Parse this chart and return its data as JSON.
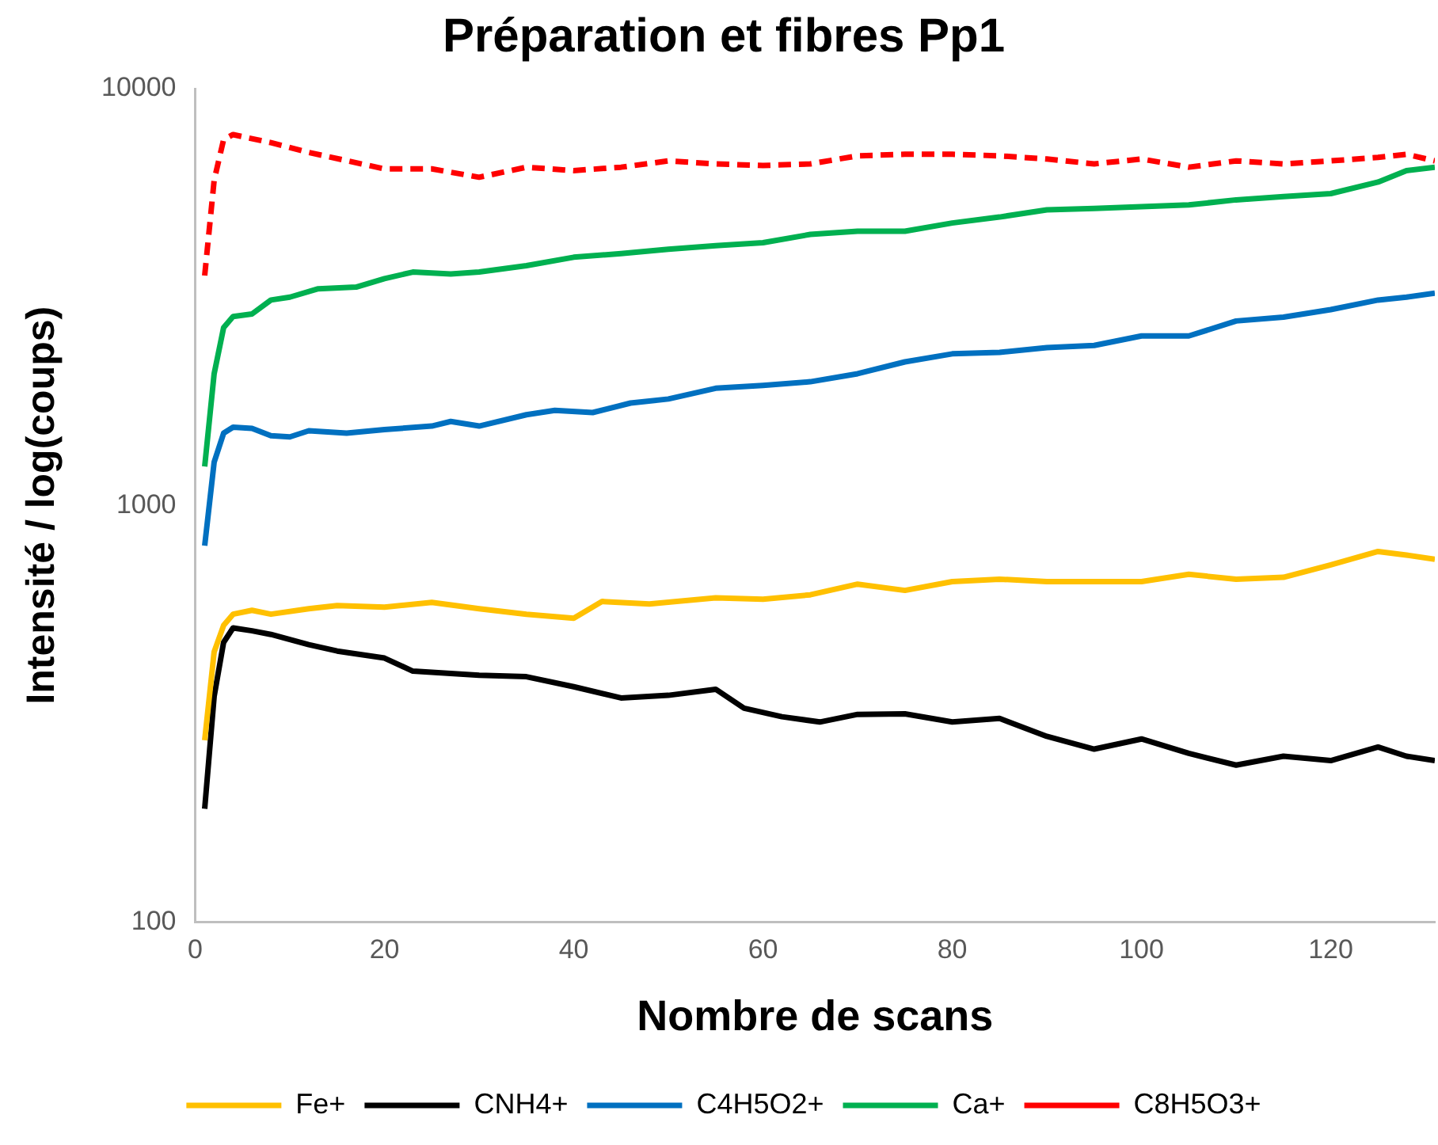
{
  "chart_data": {
    "type": "line",
    "title": "Préparation et fibres Pp1",
    "xlabel": "Nombre de scans",
    "ylabel": "Intensité / log(coups)",
    "log": "y",
    "grid": false,
    "legend": "bottom",
    "marker": "none",
    "xlim": [
      0,
      131
    ],
    "xticks": [
      0,
      20,
      40,
      60,
      80,
      100,
      120
    ],
    "ylim": [
      100,
      10000
    ],
    "yticks": [
      100,
      1000,
      10000
    ],
    "series": [
      {
        "name": "Fe+",
        "color": "#ffc000",
        "line_style": "solid",
        "x": [
          1,
          2,
          3,
          4,
          6,
          8,
          12,
          15,
          20,
          25,
          30,
          35,
          40,
          43,
          48,
          55,
          60,
          65,
          70,
          75,
          80,
          85,
          90,
          95,
          100,
          105,
          110,
          115,
          120,
          125,
          128,
          131
        ],
        "values": [
          273,
          445,
          515,
          548,
          560,
          548,
          565,
          575,
          570,
          585,
          565,
          548,
          536,
          588,
          580,
          600,
          595,
          610,
          647,
          625,
          656,
          665,
          656,
          656,
          656,
          683,
          665,
          672,
          720,
          775,
          760,
          742
        ]
      },
      {
        "name": "CNH4+",
        "color": "#000000",
        "line_style": "solid",
        "x": [
          1,
          2,
          3,
          4,
          6,
          8,
          12,
          15,
          20,
          23,
          30,
          35,
          40,
          45,
          50,
          55,
          58,
          62,
          66,
          70,
          75,
          80,
          85,
          90,
          95,
          100,
          105,
          110,
          115,
          120,
          125,
          128,
          131
        ],
        "values": [
          187,
          348,
          469,
          508,
          500,
          490,
          463,
          447,
          430,
          400,
          391,
          388,
          367,
          345,
          350,
          362,
          326,
          311,
          302,
          315,
          316,
          302,
          308,
          279,
          260,
          275,
          254,
          238,
          250,
          244,
          263,
          250,
          244
        ]
      },
      {
        "name": "C4H5O2+",
        "color": "#0070c0",
        "line_style": "solid",
        "x": [
          1,
          2,
          3,
          4,
          6,
          8,
          10,
          12,
          16,
          20,
          25,
          27,
          30,
          35,
          38,
          42,
          46,
          50,
          55,
          60,
          65,
          70,
          75,
          80,
          85,
          90,
          95,
          100,
          105,
          110,
          115,
          120,
          125,
          128,
          131
        ],
        "values": [
          800,
          1270,
          1490,
          1540,
          1530,
          1470,
          1460,
          1510,
          1490,
          1520,
          1550,
          1590,
          1550,
          1650,
          1690,
          1670,
          1760,
          1800,
          1910,
          1940,
          1980,
          2070,
          2210,
          2310,
          2330,
          2390,
          2420,
          2550,
          2550,
          2770,
          2830,
          2950,
          3110,
          3160,
          3230
        ]
      },
      {
        "name": "Ca+",
        "color": "#00b050",
        "line_style": "solid",
        "x": [
          1,
          2,
          3,
          4,
          6,
          8,
          10,
          13,
          17,
          20,
          23,
          27,
          30,
          35,
          40,
          45,
          50,
          55,
          60,
          65,
          70,
          75,
          80,
          85,
          90,
          95,
          100,
          105,
          110,
          115,
          120,
          125,
          128,
          131
        ],
        "values": [
          1240,
          2070,
          2670,
          2840,
          2880,
          3110,
          3160,
          3310,
          3340,
          3500,
          3630,
          3590,
          3630,
          3760,
          3940,
          4020,
          4120,
          4200,
          4270,
          4470,
          4550,
          4550,
          4760,
          4920,
          5120,
          5160,
          5210,
          5260,
          5410,
          5510,
          5600,
          5970,
          6360,
          6480
        ]
      },
      {
        "name": "C8H5O3+",
        "color": "#ff0000",
        "line_style": "dashed",
        "x": [
          1,
          2,
          3,
          4,
          8,
          12,
          20,
          25,
          30,
          35,
          40,
          45,
          50,
          55,
          60,
          65,
          70,
          75,
          80,
          85,
          90,
          95,
          100,
          105,
          110,
          115,
          120,
          125,
          128,
          131
        ],
        "values": [
          3560,
          6030,
          7550,
          7760,
          7420,
          7030,
          6420,
          6420,
          6130,
          6480,
          6360,
          6480,
          6710,
          6600,
          6540,
          6600,
          6900,
          6960,
          6960,
          6900,
          6780,
          6600,
          6780,
          6480,
          6710,
          6600,
          6710,
          6840,
          6960,
          6710
        ]
      }
    ]
  }
}
